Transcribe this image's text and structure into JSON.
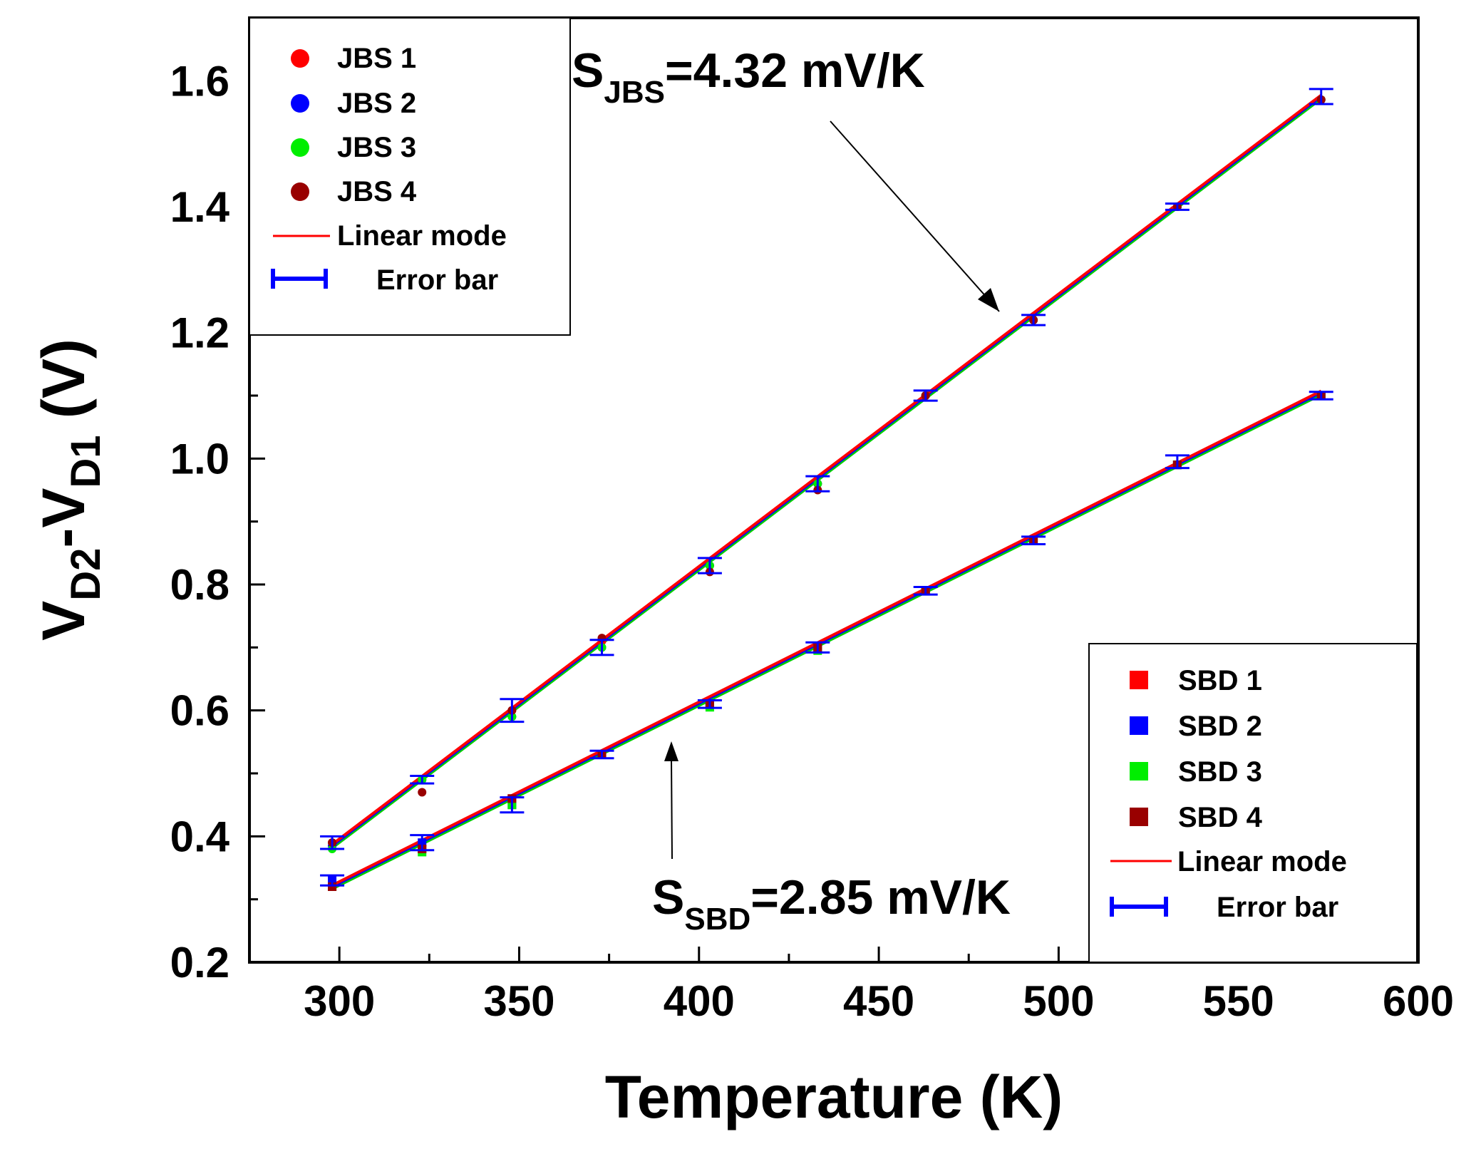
{
  "chart_data": {
    "type": "scatter",
    "title": "",
    "xlabel": "Temperature (K)",
    "ylabel": {
      "main": "V",
      "sub1": "D2",
      "mid": "-V",
      "sub2": "D1",
      "unit": " (V)"
    },
    "xlim": [
      275,
      600
    ],
    "ylim": [
      0.2,
      1.7
    ],
    "xticks": [
      300,
      350,
      400,
      450,
      500,
      550,
      600
    ],
    "yticks": [
      0.2,
      0.4,
      0.6,
      0.8,
      1.0,
      1.2,
      1.4,
      1.6
    ],
    "ytick_labels": [
      "0.2",
      "0.4",
      "0.6",
      "0.8",
      "1.0",
      "1.2",
      "1.4",
      "1.6"
    ],
    "x": [
      298,
      323,
      348,
      373,
      403,
      433,
      463,
      493,
      533,
      573
    ],
    "series": [
      {
        "name": "JBS 1",
        "group": "JBS",
        "marker": "circle",
        "color": "#ff0000",
        "values": [
          0.39,
          0.49,
          0.6,
          0.71,
          0.83,
          0.96,
          1.1,
          1.22,
          1.4,
          1.57
        ]
      },
      {
        "name": "JBS 2",
        "group": "JBS",
        "marker": "circle",
        "color": "#0000ff",
        "values": [
          0.385,
          0.49,
          0.59,
          0.7,
          0.83,
          0.96,
          1.1,
          1.22,
          1.4,
          1.57
        ]
      },
      {
        "name": "JBS 3",
        "group": "JBS",
        "marker": "circle",
        "color": "#00ee00",
        "values": [
          0.38,
          0.49,
          0.59,
          0.7,
          0.83,
          0.96,
          1.1,
          1.22,
          1.4,
          1.57
        ]
      },
      {
        "name": "JBS 4",
        "group": "JBS",
        "marker": "circle",
        "color": "#990000",
        "values": [
          0.39,
          0.47,
          0.6,
          0.715,
          0.82,
          0.95,
          1.1,
          1.22,
          1.4,
          1.57
        ]
      },
      {
        "name": "SBD 1",
        "group": "SBD",
        "marker": "square",
        "color": "#ff0000",
        "values": [
          0.32,
          0.38,
          0.46,
          0.53,
          0.61,
          0.7,
          0.79,
          0.87,
          0.99,
          1.1
        ]
      },
      {
        "name": "SBD 2",
        "group": "SBD",
        "marker": "square",
        "color": "#0000ff",
        "values": [
          0.33,
          0.39,
          0.45,
          0.53,
          0.61,
          0.7,
          0.79,
          0.87,
          0.99,
          1.1
        ]
      },
      {
        "name": "SBD 3",
        "group": "SBD",
        "marker": "square",
        "color": "#00ee00",
        "values": [
          0.32,
          0.375,
          0.45,
          0.53,
          0.605,
          0.695,
          0.79,
          0.87,
          0.99,
          1.1
        ]
      },
      {
        "name": "SBD 4",
        "group": "SBD",
        "marker": "square",
        "color": "#990000",
        "values": [
          0.32,
          0.38,
          0.46,
          0.53,
          0.61,
          0.7,
          0.79,
          0.87,
          0.99,
          1.1
        ]
      }
    ],
    "error_bars": {
      "color": "#0000ff",
      "JBS": {
        "y": [
          0.39,
          0.49,
          0.6,
          0.7,
          0.83,
          0.96,
          1.1,
          1.22,
          1.4,
          1.575
        ],
        "err": [
          0.01,
          0.006,
          0.018,
          0.012,
          0.012,
          0.012,
          0.008,
          0.008,
          0.005,
          0.012
        ]
      },
      "SBD": {
        "y": [
          0.33,
          0.39,
          0.45,
          0.53,
          0.61,
          0.7,
          0.79,
          0.87,
          0.995,
          1.1
        ],
        "err": [
          0.008,
          0.012,
          0.012,
          0.006,
          0.006,
          0.008,
          0.006,
          0.006,
          0.01,
          0.006
        ]
      }
    },
    "fit_lines": [
      {
        "group": "JBS",
        "slope_v_per_k": 0.00432,
        "x_range": [
          298,
          573
        ],
        "y_range": [
          0.385,
          1.575
        ],
        "colors": [
          "#00cc00",
          "#0000ff",
          "#ff0000"
        ]
      },
      {
        "group": "SBD",
        "slope_v_per_k": 0.00285,
        "x_range": [
          298,
          573
        ],
        "y_range": [
          0.32,
          1.105
        ],
        "colors": [
          "#00cc00",
          "#0000ff",
          "#ff0000"
        ]
      }
    ],
    "legends": [
      {
        "position": "top-left",
        "entries": [
          "JBS 1",
          "JBS 2",
          "JBS 3",
          "JBS 4",
          "Linear mode",
          "Error bar"
        ]
      },
      {
        "position": "bottom-right",
        "entries": [
          "SBD 1",
          "SBD 2",
          "SBD 3",
          "SBD 4",
          "Linear mode",
          "Error bar"
        ]
      }
    ],
    "legend_labels": {
      "linear": "Linear mode",
      "error": "Error bar"
    },
    "annotations": [
      {
        "id": "jbs",
        "main": "S",
        "sub": "JBS",
        "text": "=4.32 mV/K",
        "arrow_to": [
          485,
          1.235
        ]
      },
      {
        "id": "sbd",
        "main": "S",
        "sub": "SBD",
        "text": "=2.85 mV/K",
        "arrow_to": [
          390,
          0.585
        ]
      }
    ]
  }
}
